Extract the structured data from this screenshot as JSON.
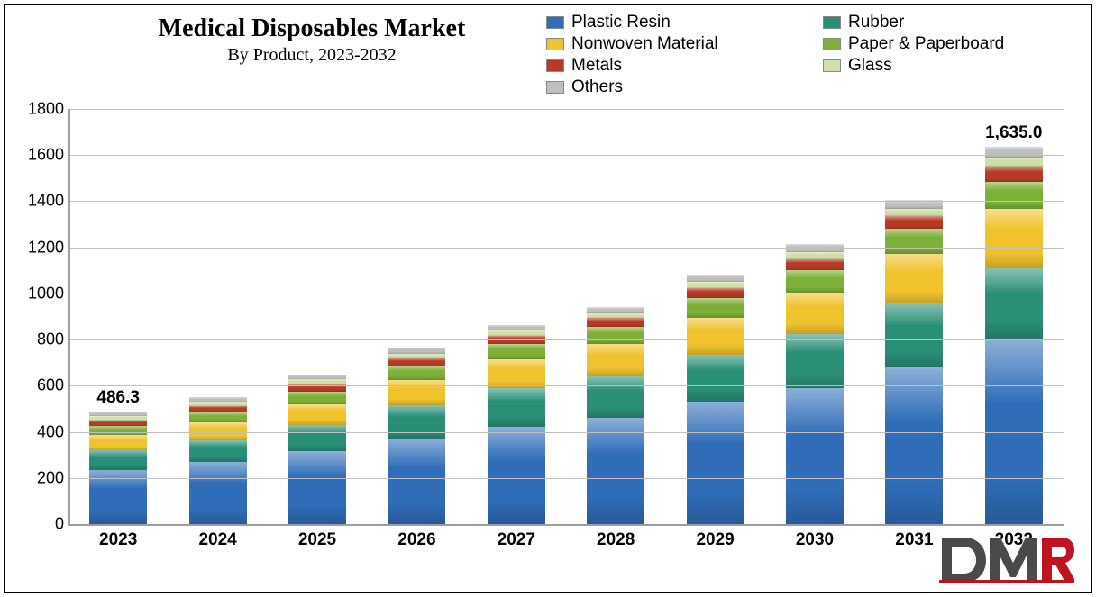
{
  "title": "Medical Disposables Market",
  "subtitle": "By Product, 2023-2032",
  "title_fontsize": 28,
  "subtitle_fontsize": 20,
  "chart": {
    "type": "stacked-bar",
    "background_color": "#ffffff",
    "grid_color": "#c0c0c0",
    "axis_color": "#9f9f9f",
    "ylim": [
      0,
      1800
    ],
    "ytick_step": 200,
    "yticks": [
      0,
      200,
      400,
      600,
      800,
      1000,
      1200,
      1400,
      1600,
      1800
    ],
    "categories": [
      "2023",
      "2024",
      "2025",
      "2026",
      "2027",
      "2028",
      "2029",
      "2030",
      "2031",
      "2032"
    ],
    "bar_width_ratio": 0.58,
    "series": [
      {
        "name": "Plastic Resin",
        "key": "plastic_resin",
        "color": "#2f6db8"
      },
      {
        "name": "Rubber",
        "key": "rubber",
        "color": "#2a8f77"
      },
      {
        "name": "Nonwoven Material",
        "key": "nonwoven",
        "color": "#f0c22e"
      },
      {
        "name": "Paper & Paperboard",
        "key": "paper",
        "color": "#7cb037"
      },
      {
        "name": "Metals",
        "key": "metals",
        "color": "#b73a24"
      },
      {
        "name": "Glass",
        "key": "glass",
        "color": "#cde0a8"
      },
      {
        "name": "Others",
        "key": "others",
        "color": "#bfbfbf"
      }
    ],
    "legend_layout": [
      "plastic_resin",
      "rubber",
      "nonwoven",
      "paper",
      "metals",
      "glass",
      "others"
    ],
    "values": {
      "plastic_resin": [
        235,
        270,
        315,
        370,
        420,
        460,
        530,
        590,
        680,
        800
      ],
      "rubber": [
        85,
        95,
        115,
        145,
        170,
        180,
        205,
        235,
        275,
        310
      ],
      "nonwoven": [
        65,
        75,
        90,
        110,
        125,
        140,
        160,
        180,
        215,
        255
      ],
      "paper": [
        40,
        45,
        55,
        60,
        65,
        75,
        85,
        95,
        110,
        120
      ],
      "metals": [
        25,
        26,
        30,
        32,
        35,
        38,
        42,
        50,
        55,
        65
      ],
      "glass": [
        18,
        19,
        22,
        23,
        25,
        22,
        28,
        30,
        33,
        40
      ],
      "others": [
        18,
        20,
        23,
        25,
        25,
        25,
        30,
        35,
        37,
        45
      ]
    },
    "totals": [
      486.3,
      550,
      650,
      765,
      865,
      940,
      1080,
      1215,
      1405,
      1635.0
    ],
    "data_labels": [
      {
        "index": 0,
        "text": "486.3"
      },
      {
        "index": 9,
        "text": "1,635.0"
      }
    ],
    "x_label_fontsize": 19,
    "x_label_fontweight": "bold",
    "y_label_fontsize": 18,
    "data_label_fontsize": 19
  },
  "logo": {
    "text": "DMR",
    "accent_color": "#c1121f",
    "primary_color": "#4a4a4a"
  }
}
